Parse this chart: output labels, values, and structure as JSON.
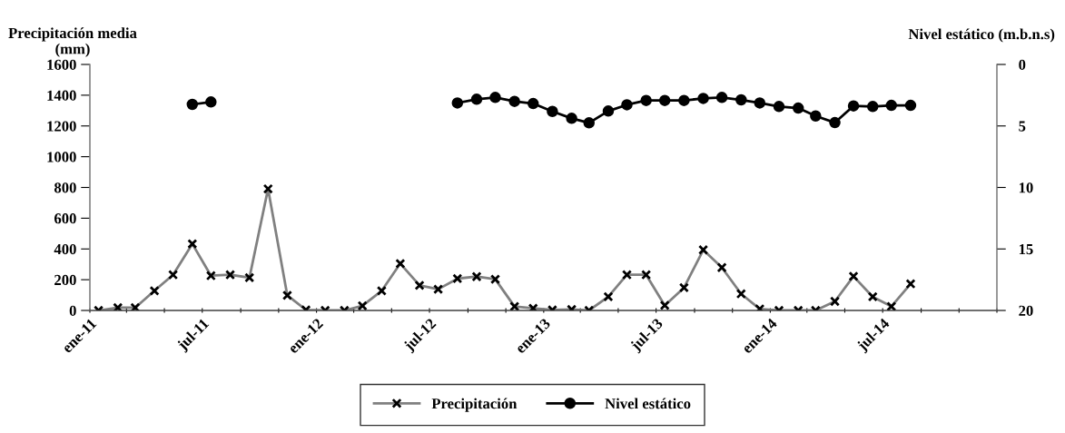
{
  "chart_data": {
    "type": "line",
    "ylabel": "Precipitación media\n(mm)",
    "y2label": "Nivel estático (m.b.n.s)",
    "x": [
      "2011-01-15",
      "2011-02-15",
      "2011-03-15",
      "2011-04-15",
      "2011-05-15",
      "2011-06-15",
      "2011-07-15",
      "2011-08-15",
      "2011-09-15",
      "2011-10-15",
      "2011-11-15",
      "2011-12-15",
      "2012-01-15",
      "2012-02-15",
      "2012-03-15",
      "2012-04-15",
      "2012-05-15",
      "2012-06-15",
      "2012-07-15",
      "2012-08-15",
      "2012-09-15",
      "2012-10-15",
      "2012-11-15",
      "2012-12-15",
      "2013-01-15",
      "2013-02-15",
      "2013-03-15",
      "2013-04-15",
      "2013-05-15",
      "2013-06-15",
      "2013-07-15",
      "2013-08-15",
      "2013-09-15",
      "2013-10-15",
      "2013-11-15",
      "2013-12-15",
      "2014-01-15",
      "2014-02-15",
      "2014-03-15",
      "2014-04-15",
      "2014-05-15",
      "2014-06-15",
      "2014-07-15",
      "2014-08-15"
    ],
    "series": [
      {
        "name": "Precipitación",
        "color": "#808080",
        "marker": "cross",
        "values": [
          0,
          18,
          18,
          128,
          232,
          433,
          226,
          232,
          213,
          791,
          98,
          4,
          0,
          0,
          30,
          128,
          305,
          163,
          138,
          207,
          220,
          203,
          26,
          14,
          3,
          6,
          0,
          89,
          232,
          232,
          33,
          148,
          394,
          279,
          108,
          10,
          0,
          0,
          0,
          59,
          222,
          89,
          26,
          173
        ]
      },
      {
        "name": "Nivel estático",
        "color": "#000000",
        "marker": "circle",
        "axis": "y2",
        "values": [
          null,
          null,
          null,
          null,
          null,
          3.25,
          3.05,
          null,
          null,
          null,
          null,
          null,
          null,
          null,
          null,
          null,
          null,
          null,
          null,
          3.13,
          2.83,
          2.68,
          3.0,
          3.18,
          3.82,
          4.38,
          4.75,
          3.79,
          3.28,
          2.93,
          2.93,
          2.93,
          2.76,
          2.68,
          2.88,
          3.13,
          3.42,
          3.55,
          4.19,
          4.73,
          3.37,
          3.42,
          3.33,
          3.33
        ]
      }
    ],
    "xlim": [
      "2011-01-01",
      "2015-01-01"
    ],
    "xticks": [
      {
        "value": "2011-01-01",
        "label": "ene-11"
      },
      {
        "value": "2011-03-01",
        "label": null
      },
      {
        "value": "2011-05-01",
        "label": null
      },
      {
        "value": "2011-07-01",
        "label": "jul-11"
      },
      {
        "value": "2011-09-01",
        "label": null
      },
      {
        "value": "2011-11-01",
        "label": null
      },
      {
        "value": "2012-01-01",
        "label": "ene-12"
      },
      {
        "value": "2012-03-01",
        "label": null
      },
      {
        "value": "2012-05-01",
        "label": null
      },
      {
        "value": "2012-07-01",
        "label": "jul-12"
      },
      {
        "value": "2012-09-01",
        "label": null
      },
      {
        "value": "2012-11-01",
        "label": null
      },
      {
        "value": "2013-01-01",
        "label": "ene-13"
      },
      {
        "value": "2013-03-01",
        "label": null
      },
      {
        "value": "2013-05-01",
        "label": null
      },
      {
        "value": "2013-07-01",
        "label": "jul-13"
      },
      {
        "value": "2013-09-01",
        "label": null
      },
      {
        "value": "2013-11-01",
        "label": null
      },
      {
        "value": "2014-01-01",
        "label": "ene-14"
      },
      {
        "value": "2014-03-01",
        "label": null
      },
      {
        "value": "2014-05-01",
        "label": null
      },
      {
        "value": "2014-07-01",
        "label": "jul-14"
      },
      {
        "value": "2014-09-01",
        "label": null
      },
      {
        "value": "2014-11-01",
        "label": null
      },
      {
        "value": "2015-01-01",
        "label": null
      }
    ],
    "ylim": [
      0,
      1600
    ],
    "yticks": [
      0,
      200,
      400,
      600,
      800,
      1000,
      1200,
      1400,
      1600
    ],
    "y2lim": [
      20,
      0
    ],
    "y2ticks": [
      0,
      5,
      10,
      15,
      20
    ],
    "grid": false,
    "legend": "bottom",
    "line_style": "solid"
  }
}
